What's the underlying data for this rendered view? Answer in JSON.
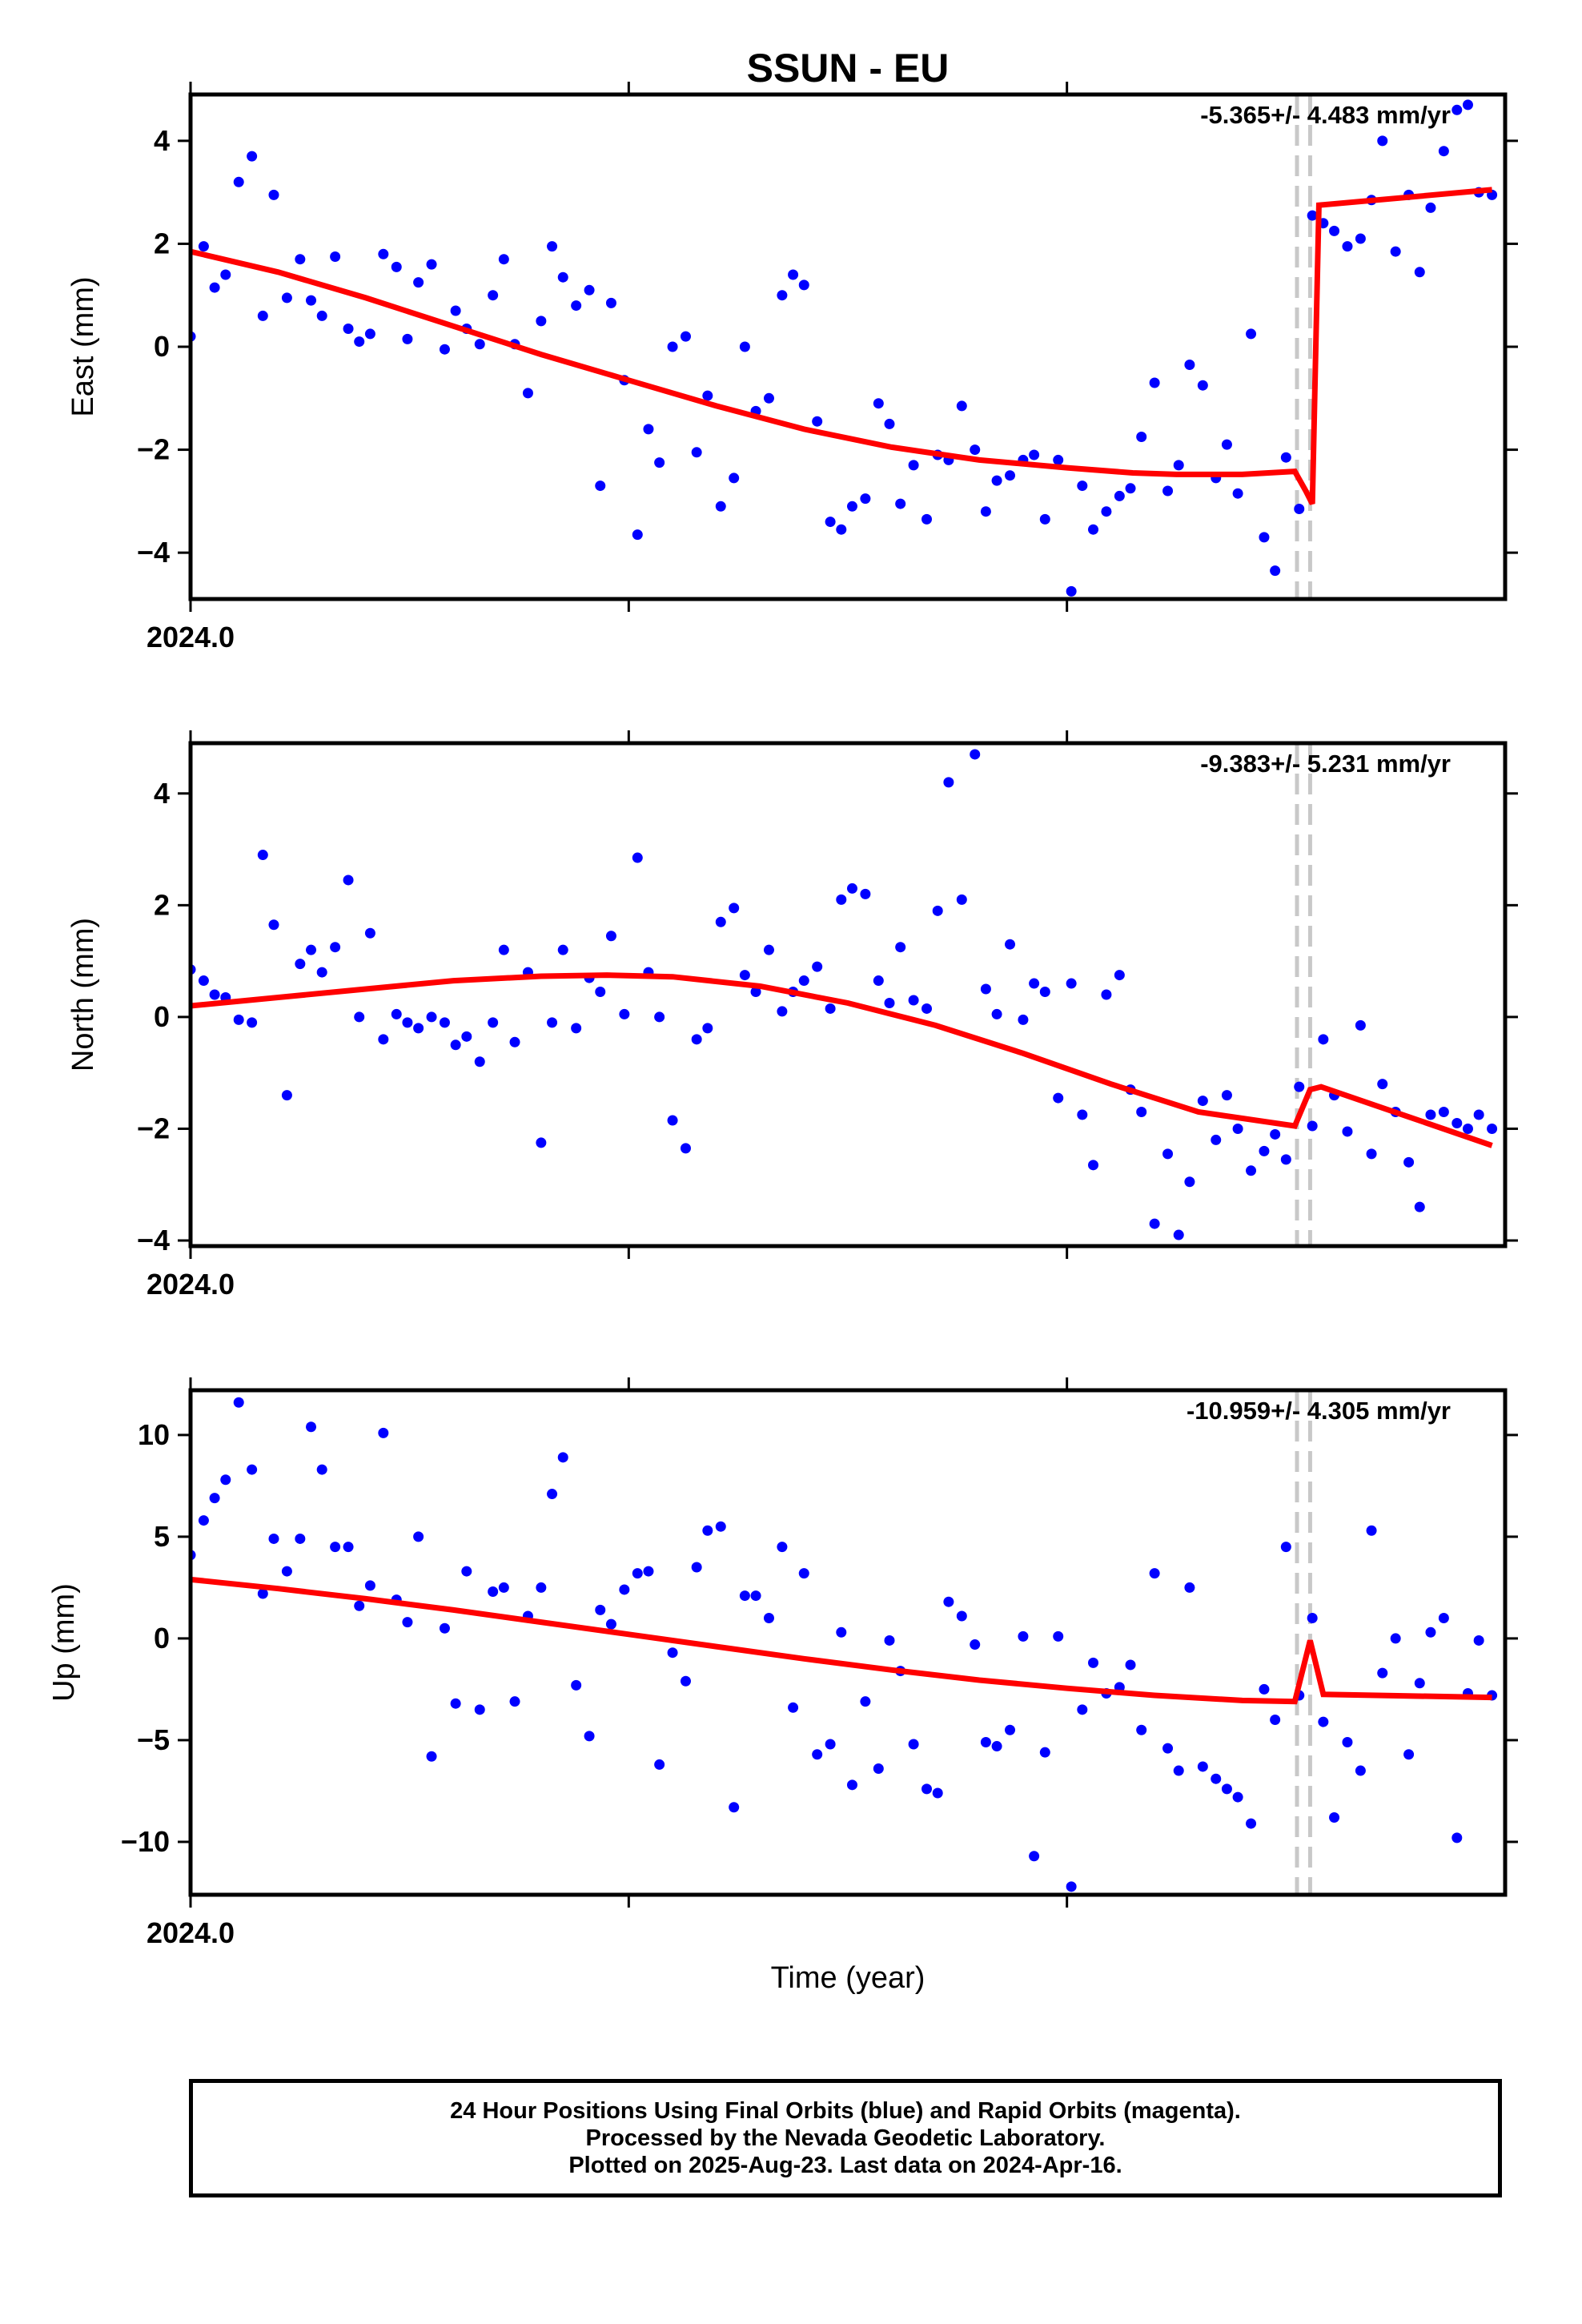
{
  "chart_data": [
    {
      "type": "scatter",
      "title": "SSUN - EU",
      "ylabel": "East (mm)",
      "xlabel": "",
      "x_tick_label": "2024.0",
      "annotation": "-5.365+/- 4.483 mm/yr",
      "xlim": [
        2024.0,
        2024.3
      ],
      "ylim": [
        -4.9,
        4.9
      ],
      "yticks": [
        -4,
        -2,
        0,
        2,
        4
      ],
      "grid": false,
      "series": [
        {
          "color": "#0000ff",
          "x": [
            2024.0,
            2024.003,
            2024.0055,
            2024.008,
            2024.011,
            2024.014,
            2024.0165,
            2024.019,
            2024.022,
            2024.025,
            2024.0275,
            2024.03,
            2024.033,
            2024.036,
            2024.0385,
            2024.041,
            2024.044,
            2024.047,
            2024.0495,
            2024.052,
            2024.055,
            2024.058,
            2024.0605,
            2024.063,
            2024.066,
            2024.069,
            2024.0715,
            2024.074,
            2024.077,
            2024.08,
            2024.0825,
            2024.085,
            2024.088,
            2024.091,
            2024.0935,
            2024.096,
            2024.099,
            2024.102,
            2024.1045,
            2024.107,
            2024.11,
            2024.113,
            2024.1155,
            2024.118,
            2024.121,
            2024.124,
            2024.1265,
            2024.129,
            2024.132,
            2024.135,
            2024.1375,
            2024.14,
            2024.143,
            2024.146,
            2024.1485,
            2024.151,
            2024.154,
            2024.157,
            2024.1595,
            2024.162,
            2024.165,
            2024.168,
            2024.1705,
            2024.173,
            2024.176,
            2024.179,
            2024.1815,
            2024.184,
            2024.187,
            2024.19,
            2024.1925,
            2024.195,
            2024.198,
            2024.201,
            2024.2035,
            2024.206,
            2024.209,
            2024.212,
            2024.2145,
            2024.217,
            2024.22,
            2024.223,
            2024.2255,
            2024.228,
            2024.231,
            2024.234,
            2024.2365,
            2024.239,
            2024.242,
            2024.245,
            2024.2475,
            2024.25,
            2024.253,
            2024.256,
            2024.2585,
            2024.261,
            2024.264,
            2024.267,
            2024.2695,
            2024.272,
            2024.275,
            2024.278,
            2024.2805,
            2024.283,
            2024.286,
            2024.289,
            2024.2915,
            2024.294,
            2024.297
          ],
          "y": [
            0.2,
            1.95,
            1.15,
            1.4,
            3.2,
            3.7,
            0.6,
            2.95,
            0.95,
            1.7,
            0.9,
            0.6,
            1.75,
            0.35,
            0.1,
            0.25,
            1.8,
            1.55,
            0.15,
            1.25,
            1.6,
            -0.05,
            0.7,
            0.35,
            0.05,
            1.0,
            1.7,
            0.05,
            -0.9,
            0.5,
            1.95,
            1.35,
            0.8,
            1.1,
            -2.7,
            0.85,
            -0.65,
            -3.65,
            -1.6,
            -2.25,
            0.0,
            0.2,
            -2.05,
            -0.95,
            -3.1,
            -2.55,
            0.0,
            -1.25,
            -1.0,
            1.0,
            1.4,
            1.2,
            -1.45,
            -3.4,
            -3.55,
            -3.1,
            -2.95,
            -1.1,
            -1.5,
            -3.05,
            -2.3,
            -3.35,
            -2.1,
            -2.2,
            -1.15,
            -2.0,
            -3.2,
            -2.6,
            -2.5,
            -2.2,
            -2.1,
            -3.35,
            -2.2,
            -4.75,
            -2.7,
            -3.55,
            -3.2,
            -2.9,
            -2.75,
            -1.75,
            -0.7,
            -2.8,
            -2.3,
            -0.35,
            -0.75,
            -2.55,
            -1.9,
            -2.85,
            0.25,
            -3.7,
            -4.35,
            -2.15,
            -3.15,
            2.55,
            2.4,
            2.25,
            1.95,
            2.1,
            2.85,
            4.0,
            1.85,
            2.95,
            1.45,
            2.7,
            3.8,
            4.6,
            4.7,
            3.0,
            2.95
          ]
        },
        {
          "color": "#ff0000",
          "x": [
            2024.0,
            2024.02,
            2024.04,
            2024.06,
            2024.08,
            2024.1,
            2024.12,
            2024.14,
            2024.16,
            2024.18,
            2024.2,
            2024.215,
            2024.225,
            2024.24,
            2024.252,
            2024.2545,
            2024.256,
            2024.2575,
            2024.297
          ],
          "y": [
            1.85,
            1.45,
            0.95,
            0.4,
            -0.15,
            -0.65,
            -1.15,
            -1.6,
            -1.95,
            -2.2,
            -2.35,
            -2.45,
            -2.48,
            -2.48,
            -2.42,
            -2.8,
            -3.05,
            2.75,
            3.05
          ]
        }
      ],
      "breaks": [
        2024.2525,
        2024.2555
      ]
    },
    {
      "type": "scatter",
      "title": "",
      "ylabel": "North (mm)",
      "xlabel": "",
      "x_tick_label": "2024.0",
      "annotation": "-9.383+/- 5.231 mm/yr",
      "xlim": [
        2024.0,
        2024.3
      ],
      "ylim": [
        -4.1,
        4.9
      ],
      "yticks": [
        -4,
        -2,
        0,
        2,
        4
      ],
      "grid": false,
      "series": [
        {
          "color": "#0000ff",
          "x": [
            2024.0,
            2024.003,
            2024.0055,
            2024.008,
            2024.011,
            2024.014,
            2024.0165,
            2024.019,
            2024.022,
            2024.025,
            2024.0275,
            2024.03,
            2024.033,
            2024.036,
            2024.0385,
            2024.041,
            2024.044,
            2024.047,
            2024.0495,
            2024.052,
            2024.055,
            2024.058,
            2024.0605,
            2024.063,
            2024.066,
            2024.069,
            2024.0715,
            2024.074,
            2024.077,
            2024.08,
            2024.0825,
            2024.085,
            2024.088,
            2024.091,
            2024.0935,
            2024.096,
            2024.099,
            2024.102,
            2024.1045,
            2024.107,
            2024.11,
            2024.113,
            2024.1155,
            2024.118,
            2024.121,
            2024.124,
            2024.1265,
            2024.129,
            2024.132,
            2024.135,
            2024.1375,
            2024.14,
            2024.143,
            2024.146,
            2024.1485,
            2024.151,
            2024.154,
            2024.157,
            2024.1595,
            2024.162,
            2024.165,
            2024.168,
            2024.1705,
            2024.173,
            2024.176,
            2024.179,
            2024.1815,
            2024.184,
            2024.187,
            2024.19,
            2024.1925,
            2024.195,
            2024.198,
            2024.201,
            2024.2035,
            2024.206,
            2024.209,
            2024.212,
            2024.2145,
            2024.217,
            2024.22,
            2024.223,
            2024.2255,
            2024.228,
            2024.231,
            2024.234,
            2024.2365,
            2024.239,
            2024.242,
            2024.245,
            2024.2475,
            2024.25,
            2024.253,
            2024.256,
            2024.2585,
            2024.261,
            2024.264,
            2024.267,
            2024.2695,
            2024.272,
            2024.275,
            2024.278,
            2024.2805,
            2024.283,
            2024.286,
            2024.289,
            2024.2915,
            2024.294,
            2024.297
          ],
          "y": [
            0.85,
            0.65,
            0.4,
            0.35,
            -0.05,
            -0.1,
            2.9,
            1.65,
            -1.4,
            0.95,
            1.2,
            0.8,
            1.25,
            2.45,
            0.0,
            1.5,
            -0.4,
            0.05,
            -0.1,
            -0.2,
            0.0,
            -0.1,
            -0.5,
            -0.35,
            -0.8,
            -0.1,
            1.2,
            -0.45,
            0.8,
            -2.25,
            -0.1,
            1.2,
            -0.2,
            0.7,
            0.45,
            1.45,
            0.05,
            2.85,
            0.8,
            0.0,
            -1.85,
            -2.35,
            -0.4,
            -0.2,
            1.7,
            1.95,
            0.75,
            0.45,
            1.2,
            0.1,
            0.45,
            0.65,
            0.9,
            0.15,
            2.1,
            2.3,
            2.2,
            0.65,
            0.25,
            1.25,
            0.3,
            0.15,
            1.9,
            4.2,
            2.1,
            4.7,
            0.5,
            0.05,
            1.3,
            -0.05,
            0.6,
            0.45,
            -1.45,
            0.6,
            -1.75,
            -2.65,
            0.4,
            0.75,
            -1.3,
            -1.7,
            -3.7,
            -2.45,
            -3.9,
            -2.95,
            -1.5,
            -2.2,
            -1.4,
            -2.0,
            -2.75,
            -2.4,
            -2.1,
            -2.55,
            -1.25,
            -1.95,
            -0.4,
            -1.4,
            -2.05,
            -0.15,
            -2.45,
            -1.2,
            -1.7,
            -2.6,
            -3.4,
            -1.75,
            -1.7,
            -1.9,
            -2.0,
            -1.75,
            -2.0
          ]
        },
        {
          "color": "#ff0000",
          "x": [
            2024.0,
            2024.02,
            2024.04,
            2024.06,
            2024.08,
            2024.095,
            2024.11,
            2024.13,
            2024.15,
            2024.17,
            2024.19,
            2024.21,
            2024.23,
            2024.252,
            2024.2555,
            2024.258,
            2024.297
          ],
          "y": [
            0.2,
            0.35,
            0.5,
            0.65,
            0.73,
            0.75,
            0.72,
            0.55,
            0.25,
            -0.15,
            -0.65,
            -1.2,
            -1.7,
            -1.95,
            -1.3,
            -1.25,
            -2.3
          ]
        }
      ],
      "breaks": [
        2024.2525,
        2024.2555
      ]
    },
    {
      "type": "scatter",
      "title": "",
      "ylabel": "Up (mm)",
      "xlabel": "Time (year)",
      "x_tick_label": "2024.0",
      "annotation": "-10.959+/- 4.305 mm/yr",
      "xlim": [
        2024.0,
        2024.3
      ],
      "ylim": [
        -12.6,
        12.2
      ],
      "yticks": [
        -10,
        -5,
        0,
        5,
        10
      ],
      "grid": false,
      "series": [
        {
          "color": "#0000ff",
          "x": [
            2024.0,
            2024.003,
            2024.0055,
            2024.008,
            2024.011,
            2024.014,
            2024.0165,
            2024.019,
            2024.022,
            2024.025,
            2024.0275,
            2024.03,
            2024.033,
            2024.036,
            2024.0385,
            2024.041,
            2024.044,
            2024.047,
            2024.0495,
            2024.052,
            2024.055,
            2024.058,
            2024.0605,
            2024.063,
            2024.066,
            2024.069,
            2024.0715,
            2024.074,
            2024.077,
            2024.08,
            2024.0825,
            2024.085,
            2024.088,
            2024.091,
            2024.0935,
            2024.096,
            2024.099,
            2024.102,
            2024.1045,
            2024.107,
            2024.11,
            2024.113,
            2024.1155,
            2024.118,
            2024.121,
            2024.124,
            2024.1265,
            2024.129,
            2024.132,
            2024.135,
            2024.1375,
            2024.14,
            2024.143,
            2024.146,
            2024.1485,
            2024.151,
            2024.154,
            2024.157,
            2024.1595,
            2024.162,
            2024.165,
            2024.168,
            2024.1705,
            2024.173,
            2024.176,
            2024.179,
            2024.1815,
            2024.184,
            2024.187,
            2024.19,
            2024.1925,
            2024.195,
            2024.198,
            2024.201,
            2024.2035,
            2024.206,
            2024.209,
            2024.212,
            2024.2145,
            2024.217,
            2024.22,
            2024.223,
            2024.2255,
            2024.228,
            2024.231,
            2024.234,
            2024.2365,
            2024.239,
            2024.242,
            2024.245,
            2024.2475,
            2024.25,
            2024.253,
            2024.256,
            2024.2585,
            2024.261,
            2024.264,
            2024.267,
            2024.2695,
            2024.272,
            2024.275,
            2024.278,
            2024.2805,
            2024.283,
            2024.286,
            2024.289,
            2024.2915,
            2024.294,
            2024.297
          ],
          "y": [
            4.1,
            5.8,
            6.9,
            7.8,
            11.6,
            8.3,
            2.2,
            4.9,
            3.3,
            4.9,
            10.4,
            8.3,
            4.5,
            4.5,
            1.6,
            2.6,
            10.1,
            1.9,
            0.8,
            5.0,
            -5.8,
            0.5,
            -3.2,
            3.3,
            -3.5,
            2.3,
            2.5,
            -3.1,
            1.1,
            2.5,
            7.1,
            8.9,
            -2.3,
            -4.8,
            1.4,
            0.7,
            2.4,
            3.2,
            3.3,
            -6.2,
            -0.7,
            -2.1,
            3.5,
            5.3,
            5.5,
            -8.3,
            2.1,
            2.1,
            1.0,
            4.5,
            -3.4,
            3.2,
            -5.7,
            -5.2,
            0.3,
            -7.2,
            -3.1,
            -6.4,
            -0.1,
            -1.6,
            -5.2,
            -7.4,
            -7.6,
            1.8,
            1.1,
            -0.3,
            -5.1,
            -5.3,
            -4.5,
            0.1,
            -10.7,
            -5.6,
            0.1,
            -12.2,
            -3.5,
            -1.2,
            -2.7,
            -2.4,
            -1.3,
            -4.5,
            3.2,
            -5.4,
            -6.5,
            2.5,
            -6.3,
            -6.9,
            -7.4,
            -7.8,
            -9.1,
            -2.5,
            -4.0,
            4.5,
            -2.8,
            1.0,
            -4.1,
            -8.8,
            -5.1,
            -6.5,
            5.3,
            -1.7,
            0.0,
            -5.7,
            -2.2,
            0.3,
            1.0,
            -9.8,
            -2.7,
            -0.1,
            -2.8
          ]
        },
        {
          "color": "#ff0000",
          "x": [
            2024.0,
            2024.02,
            2024.04,
            2024.06,
            2024.08,
            2024.1,
            2024.12,
            2024.14,
            2024.16,
            2024.18,
            2024.2,
            2024.22,
            2024.24,
            2024.252,
            2024.2555,
            2024.2585,
            2024.297
          ],
          "y": [
            2.9,
            2.45,
            1.95,
            1.4,
            0.8,
            0.2,
            -0.4,
            -1.0,
            -1.55,
            -2.05,
            -2.45,
            -2.8,
            -3.05,
            -3.1,
            -0.1,
            -2.75,
            -2.9
          ]
        }
      ],
      "breaks": [
        2024.2525,
        2024.2555
      ]
    }
  ],
  "footer": {
    "line1": "24 Hour Positions Using Final Orbits (blue) and Rapid Orbits (magenta).",
    "line2": "Processed by the Nevada Geodetic Laboratory.",
    "line3": "Plotted on 2025-Aug-23. Last data on 2024-Apr-16."
  }
}
